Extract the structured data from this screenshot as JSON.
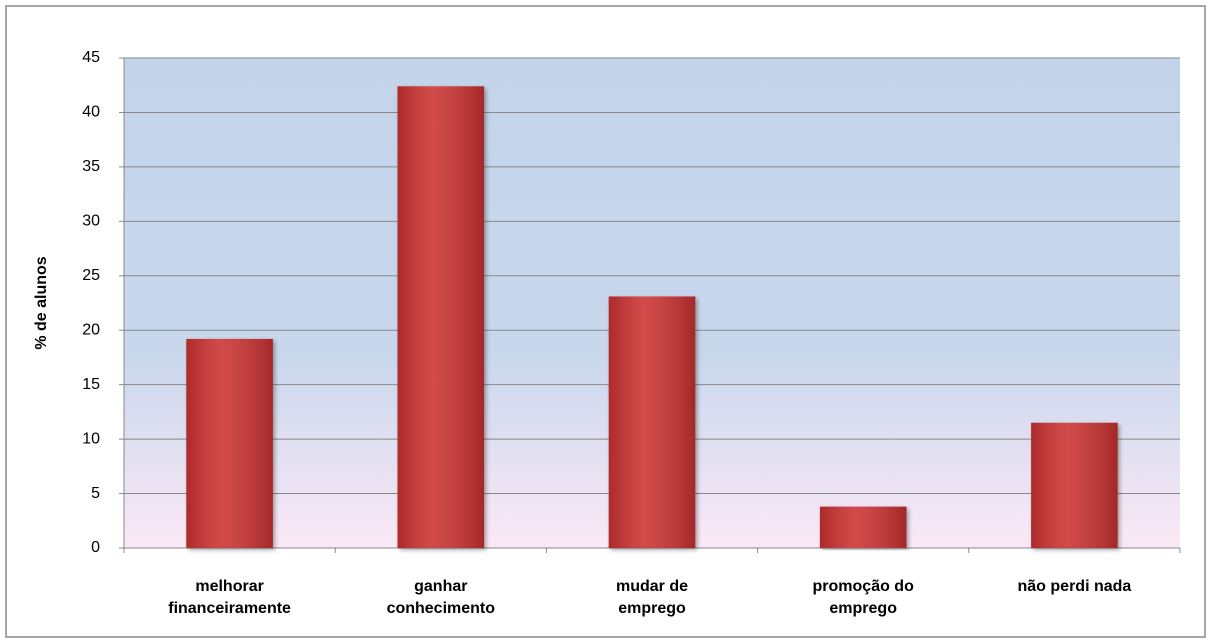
{
  "chart_data": {
    "type": "bar",
    "y_label": "% de alunos",
    "categories": [
      [
        "melhorar",
        "financeiramente"
      ],
      [
        "ganhar",
        "conhecimento"
      ],
      [
        "mudar de",
        "emprego"
      ],
      [
        "promoção do",
        "emprego"
      ],
      [
        "não perdi nada"
      ]
    ],
    "values": [
      19.2,
      42.4,
      23.1,
      3.8,
      11.5
    ],
    "color": "#cc3333",
    "ylim": [
      0,
      45
    ],
    "yticks": [
      0,
      5,
      10,
      15,
      20,
      25,
      30,
      35,
      40,
      45
    ],
    "grid": true
  }
}
